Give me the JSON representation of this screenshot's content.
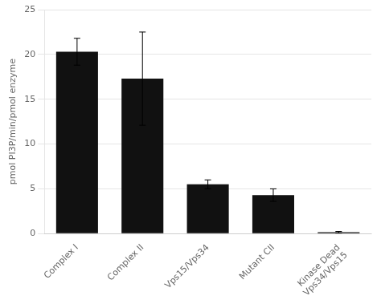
{
  "chart_data": {
    "type": "bar",
    "categories": [
      "Complex I",
      "Complex II",
      "Vps15/Vps34",
      "Mutant CII",
      "Kinase Dead\nVps34/Vps15"
    ],
    "values": [
      20.3,
      17.3,
      5.5,
      4.3,
      0.15
    ],
    "errors": [
      1.5,
      5.2,
      0.5,
      0.7,
      0.1
    ],
    "ylabel": "pmol PI3P/min/pmol enzyme",
    "color": "#111111",
    "ylim": [
      0,
      25
    ],
    "yticks": [
      0,
      5,
      10,
      15,
      20,
      25
    ],
    "grid": true
  }
}
